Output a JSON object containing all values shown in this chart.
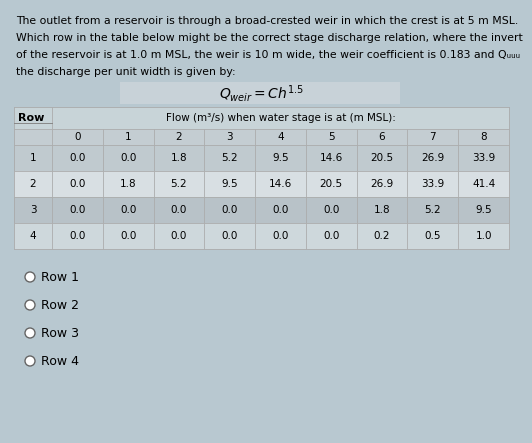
{
  "title_lines": [
    "The outlet from a reservoir is through a broad-crested weir in which the crest is at 5 m MSL.",
    "Which row in the table below might be the correct stage discharge relation, where the invert",
    "of the reservoir is at 1.0 m MSL, the weir is 10 m wide, the weir coefficient is 0.183 and Qᵤᵤᵤ",
    "the discharge per unit width is given by:"
  ],
  "formula": "$Q_{weir} = Ch^{1.5}$",
  "subheader": "Flow (m³/s) when water stage is at (m MSL):",
  "col_nums": [
    "0",
    "1",
    "2",
    "3",
    "4",
    "5",
    "6",
    "7",
    "8"
  ],
  "rows": [
    [
      "1",
      "0.0",
      "0.0",
      "1.8",
      "5.2",
      "9.5",
      "14.6",
      "20.5",
      "26.9",
      "33.9"
    ],
    [
      "2",
      "0.0",
      "1.8",
      "5.2",
      "9.5",
      "14.6",
      "20.5",
      "26.9",
      "33.9",
      "41.4"
    ],
    [
      "3",
      "0.0",
      "0.0",
      "0.0",
      "0.0",
      "0.0",
      "0.0",
      "1.8",
      "5.2",
      "9.5"
    ],
    [
      "4",
      "0.0",
      "0.0",
      "0.0",
      "0.0",
      "0.0",
      "0.0",
      "0.2",
      "0.5",
      "1.0"
    ]
  ],
  "options": [
    "Row 1",
    "Row 2",
    "Row 3",
    "Row 4"
  ],
  "bg_color": "#b8c8d0",
  "table_bg": "#d8dfe3",
  "header_area_bg": "#c8d4d8",
  "row1_bg": "#c0cacf",
  "row2_bg": "#d8dfe3",
  "row3_bg": "#b8c2c8",
  "row4_bg": "#ced8dc",
  "col_header_bg": "#c4cdd2",
  "formula_bg": "#c8d2d8",
  "title_fontsize": 7.8,
  "table_fontsize": 7.5,
  "formula_fontsize": 10
}
